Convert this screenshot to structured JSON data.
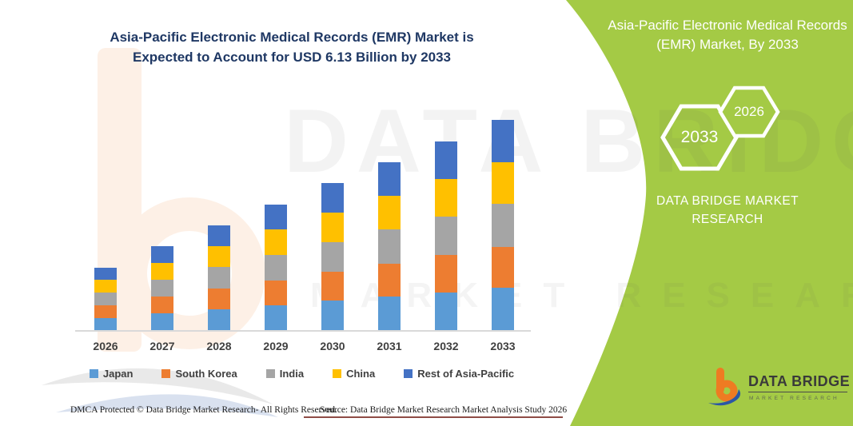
{
  "header": {
    "title": "Asia-Pacific Electronic Medical Records (EMR) Market is Expected to Account for USD 6.13 Billion by 2033"
  },
  "right_panel": {
    "title": "Asia-Pacific Electronic Medical Records (EMR) Market, By 2033",
    "hexagon_years": {
      "large": "2033",
      "small": "2026"
    },
    "brand_text": "DATA BRIDGE MARKET RESEARCH"
  },
  "watermark": {
    "line1": "DATA BRIDGE",
    "line2": "MARKET RESEARCH"
  },
  "colors": {
    "brand_green": "#A4CA45",
    "title_navy": "#1F3864",
    "axis_gray": "#D9D9D9",
    "logo_orange": "#EE7B22",
    "logo_blue": "#2B57A5"
  },
  "footer": {
    "dmca": "DMCA Protected © Data Bridge Market Research- All Rights Reserved.",
    "source": "Source: Data Bridge Market Research Market Analysis Study 2026"
  },
  "logo": {
    "name": "DATA BRIDGE",
    "tagline": "MARKET RESEARCH"
  },
  "chart_data": {
    "type": "bar",
    "subtype": "stacked",
    "title": "Asia-Pacific Electronic Medical Records (EMR) Market is Expected to Account for USD 6.13 Billion by 2033",
    "unit": "USD Billion",
    "categories": [
      "2026",
      "2027",
      "2028",
      "2029",
      "2030",
      "2031",
      "2032",
      "2033"
    ],
    "series": [
      {
        "name": "Japan",
        "color": "#5B9BD5",
        "values": [
          0.36,
          0.48,
          0.6,
          0.72,
          0.85,
          0.97,
          1.1,
          1.24
        ]
      },
      {
        "name": "South Korea",
        "color": "#ED7D31",
        "values": [
          0.36,
          0.49,
          0.61,
          0.73,
          0.85,
          0.97,
          1.09,
          1.18
        ]
      },
      {
        "name": "India",
        "color": "#A5A5A5",
        "values": [
          0.38,
          0.5,
          0.62,
          0.75,
          0.87,
          1.0,
          1.12,
          1.26
        ]
      },
      {
        "name": "China",
        "color": "#FFC000",
        "values": [
          0.36,
          0.48,
          0.61,
          0.73,
          0.85,
          0.98,
          1.1,
          1.22
        ]
      },
      {
        "name": "Rest of Asia-Pacific",
        "color": "#4472C4",
        "values": [
          0.36,
          0.49,
          0.61,
          0.74,
          0.86,
          0.98,
          1.1,
          1.23
        ]
      }
    ],
    "totals": [
      1.82,
      2.44,
      3.05,
      3.67,
      4.28,
      4.9,
      5.51,
      6.13
    ],
    "ylim": [
      0,
      6.5
    ],
    "grid": false,
    "y_axis_shown": false,
    "legend_position": "bottom"
  }
}
